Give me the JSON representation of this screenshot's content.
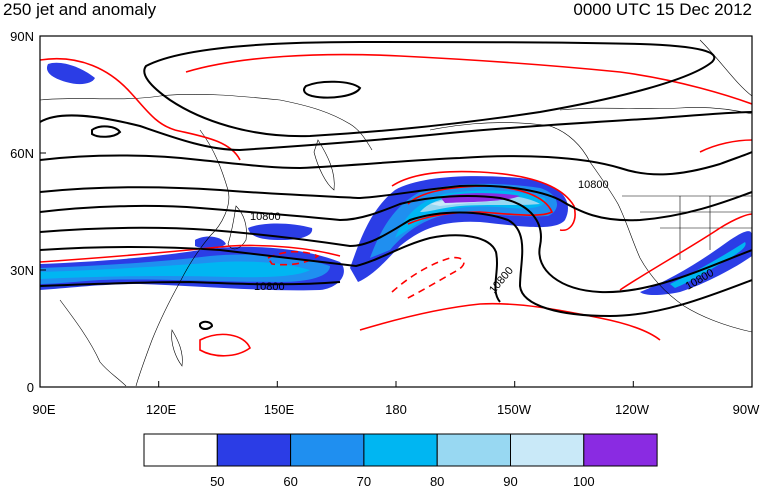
{
  "title_left": "250 jet and anomaly",
  "title_right": "0000 UTC 15 Dec 2012",
  "lat_ticks": [
    "90N",
    "60N",
    "30N",
    "0"
  ],
  "lon_ticks": [
    "90E",
    "120E",
    "150E",
    "180",
    "150W",
    "120W",
    "90W"
  ],
  "colorbar": {
    "colors": [
      "#ffffff",
      "#2b3de6",
      "#1f8ff0",
      "#00b6f2",
      "#98d8f2",
      "#c9e9f8",
      "#8a2be2"
    ],
    "labels": [
      "50",
      "60",
      "70",
      "80",
      "90",
      "100"
    ]
  },
  "contour_labels": [
    "10800",
    "10800",
    "10800",
    "10800",
    "10800"
  ],
  "colors": {
    "height_contour": "#000000",
    "anomaly_contour": "#ff0000",
    "coastline": "#000000"
  }
}
